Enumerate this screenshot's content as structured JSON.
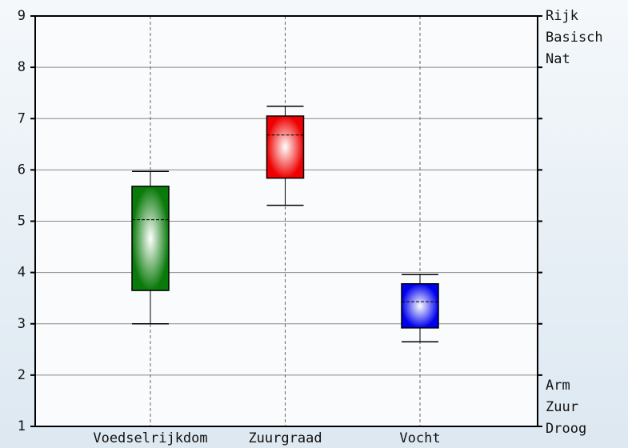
{
  "chart_data": {
    "type": "box",
    "categories": [
      "Voedselrijkdom",
      "Zuurgraad",
      "Vocht"
    ],
    "colors": [
      "#0a7a0a",
      "#ee0000",
      "#0000ee"
    ],
    "min": [
      3.0,
      5.31,
      2.65
    ],
    "q1": [
      3.65,
      5.84,
      2.92
    ],
    "median": [
      5.03,
      6.68,
      3.43
    ],
    "q3": [
      5.68,
      7.05,
      3.78
    ],
    "max": [
      5.97,
      7.24,
      3.96
    ],
    "ylim": [
      1,
      9
    ],
    "yticks": [
      1,
      2,
      3,
      4,
      5,
      6,
      7,
      8,
      9
    ],
    "grid": true,
    "top_labels": [
      "Rijk",
      "Basisch",
      "Nat"
    ],
    "bottom_labels": [
      "Arm",
      "Zuur",
      "Droog"
    ]
  }
}
